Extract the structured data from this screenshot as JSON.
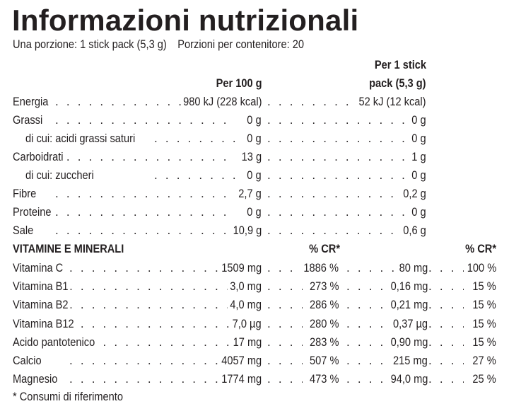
{
  "title": "Informazioni nutrizionali",
  "serving": {
    "serving_size": "Una porzione: 1 stick pack (5,3 g)",
    "servings_per_container": "Porzioni per contenitore: 20"
  },
  "columns": {
    "per_100g": "Per 100 g",
    "per_stick_line1": "Per 1 stick",
    "per_stick_line2": "pack (5,3 g)",
    "cr": "% CR*"
  },
  "nutrients": [
    {
      "label": "Energia",
      "per_100g": "980 kJ (228 kcal)",
      "per_stick": "52 kJ (12 kcal)",
      "indent": false
    },
    {
      "label": "Grassi",
      "per_100g": "0 g",
      "per_stick": "0 g",
      "indent": false
    },
    {
      "label": "di cui: acidi grassi saturi",
      "per_100g": "0 g",
      "per_stick": "0 g",
      "indent": true
    },
    {
      "label": "Carboidrati",
      "per_100g": "13 g",
      "per_stick": "1 g",
      "indent": false
    },
    {
      "label": "di cui: zuccheri",
      "per_100g": "0 g",
      "per_stick": "0 g",
      "indent": true
    },
    {
      "label": "Fibre",
      "per_100g": "2,7 g",
      "per_stick": "0,2 g",
      "indent": false
    },
    {
      "label": "Proteine",
      "per_100g": "0 g",
      "per_stick": "0 g",
      "indent": false
    },
    {
      "label": "Sale",
      "per_100g": "10,9 g",
      "per_stick": "0,6 g",
      "indent": false
    }
  ],
  "vitamins_section": {
    "heading": "VITAMINE E MINERALI",
    "cr_header_1": "% CR*",
    "cr_header_2": "% CR*",
    "items": [
      {
        "label": "Vitamina C",
        "per_100g": "1509 mg",
        "cr_100g": "1886 %",
        "per_stick": "80 mg",
        "cr_stick": "100 %"
      },
      {
        "label": "Vitamina B1",
        "per_100g": "3,0 mg",
        "cr_100g": "273 %",
        "per_stick": "0,16 mg",
        "cr_stick": "15 %"
      },
      {
        "label": "Vitamina B2",
        "per_100g": "4,0 mg",
        "cr_100g": "286 %",
        "per_stick": "0,21 mg",
        "cr_stick": "15 %"
      },
      {
        "label": "Vitamina B12",
        "per_100g": "7,0 µg",
        "cr_100g": "280 %",
        "per_stick": "0,37 µg",
        "cr_stick": "15 %"
      },
      {
        "label": "Acido pantotenico",
        "per_100g": "17 mg",
        "cr_100g": "283 %",
        "per_stick": "0,90 mg",
        "cr_stick": "15 %"
      },
      {
        "label": "Calcio",
        "per_100g": "4057 mg",
        "cr_100g": "507 %",
        "per_stick": "215 mg",
        "cr_stick": "27 %"
      },
      {
        "label": "Magnesio",
        "per_100g": "1774 mg",
        "cr_100g": "473 %",
        "per_stick": "94,0 mg",
        "cr_stick": "25 %"
      }
    ]
  },
  "footnote": "* Consumi di riferimento",
  "colors": {
    "text": "#231f20",
    "background": "#ffffff"
  }
}
